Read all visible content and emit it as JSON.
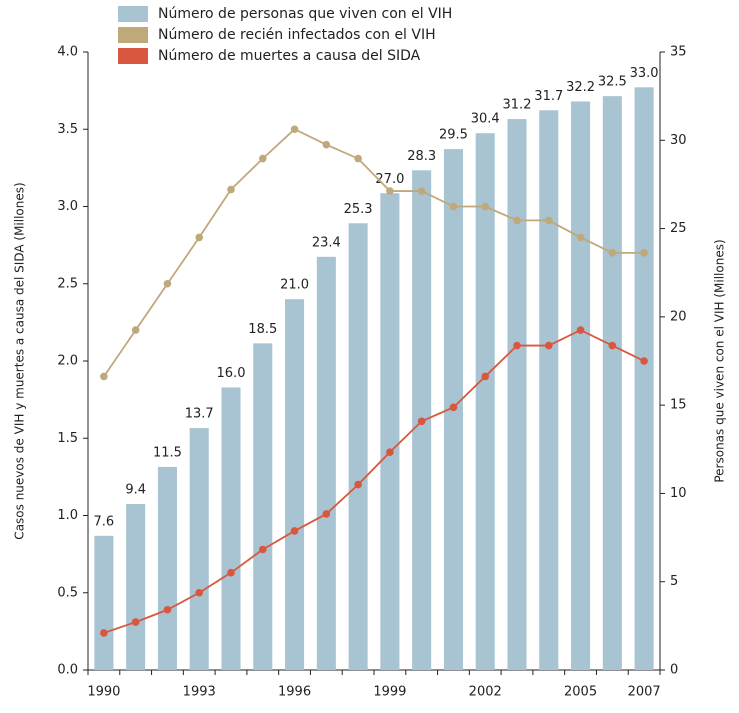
{
  "chart_data": {
    "type": "bar",
    "ylabel": "Casos nuevos de VIH y muertes a causa del SIDA (Millones)",
    "y2label": "Personas que viven con el VIH (Millones)",
    "categories": [
      "1990",
      null,
      null,
      "1993",
      null,
      null,
      "1996",
      null,
      null,
      "1999",
      null,
      null,
      "2002",
      null,
      null,
      "2005",
      null,
      "2007"
    ],
    "series": [
      {
        "name": "Número de personas que viven con el VIH",
        "type": "bar",
        "axis": "y2",
        "color": "#a8c3d1",
        "values": [
          7.6,
          9.4,
          11.5,
          13.7,
          16.0,
          18.5,
          21.0,
          23.4,
          25.3,
          27.0,
          28.3,
          29.5,
          30.4,
          31.2,
          31.7,
          32.2,
          32.5,
          33.0
        ],
        "value_labels": [
          "7.6",
          "9.4",
          "11.5",
          "13.7",
          "16.0",
          "18.5",
          "21.0",
          "23.4",
          "25.3",
          "27.0",
          "28.3",
          "29.5",
          "30.4",
          "31.2",
          "31.7",
          "32.2",
          "32.5",
          "33.0"
        ]
      },
      {
        "name": "Número de recién infectados con el VIH",
        "type": "line",
        "axis": "y",
        "color": "#bfa97a",
        "values": [
          1.9,
          2.2,
          2.5,
          2.8,
          3.11,
          3.31,
          3.5,
          3.4,
          3.31,
          3.1,
          3.1,
          3.0,
          3.0,
          2.91,
          2.91,
          2.8,
          2.7,
          2.7
        ]
      },
      {
        "name": "Número de muertes a causa del SIDA",
        "type": "line",
        "axis": "y",
        "color": "#d9573e",
        "values": [
          0.24,
          0.31,
          0.39,
          0.5,
          0.63,
          0.78,
          0.9,
          1.01,
          1.2,
          1.41,
          1.61,
          1.7,
          1.9,
          2.1,
          2.1,
          2.2,
          2.1,
          2.0
        ]
      }
    ],
    "ylim": [
      0,
      4
    ],
    "yticks": [
      {
        "value": 0,
        "label": "0.0"
      },
      0.5,
      {
        "value": 1,
        "label": "1.0"
      },
      1.5,
      {
        "value": 2,
        "label": "2.0"
      },
      2.5,
      {
        "value": 3,
        "label": "3.0"
      },
      3.5,
      {
        "value": 4,
        "label": "4.0"
      }
    ],
    "y2lim": [
      0,
      35
    ],
    "y2ticks": [
      0,
      5,
      10,
      15,
      20,
      25,
      30,
      35
    ]
  }
}
